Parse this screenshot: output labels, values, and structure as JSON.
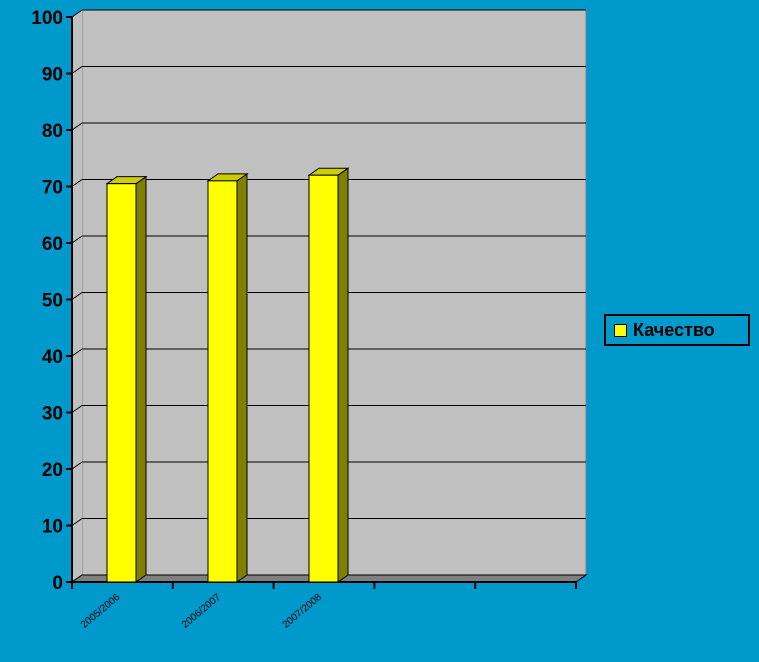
{
  "chart_data": {
    "type": "bar",
    "title": "",
    "xlabel": "",
    "ylabel": "",
    "categories": [
      "2005/2006",
      "2006/2007",
      "2007/2008",
      "",
      ""
    ],
    "series": [
      {
        "name": "Качество",
        "values": [
          70.5,
          71,
          72,
          null,
          null
        ]
      }
    ],
    "ylim": [
      0,
      100
    ],
    "yticks": [
      0,
      10,
      20,
      30,
      40,
      50,
      60,
      70,
      80,
      90,
      100
    ],
    "grid": true,
    "legend": "right",
    "colors": {
      "background": "#0099cc",
      "plot": "#c0c0c0",
      "bar_front": "#ffff00",
      "bar_side": "#808000",
      "bar_top": "#cccc00",
      "floor": "#808080"
    }
  }
}
